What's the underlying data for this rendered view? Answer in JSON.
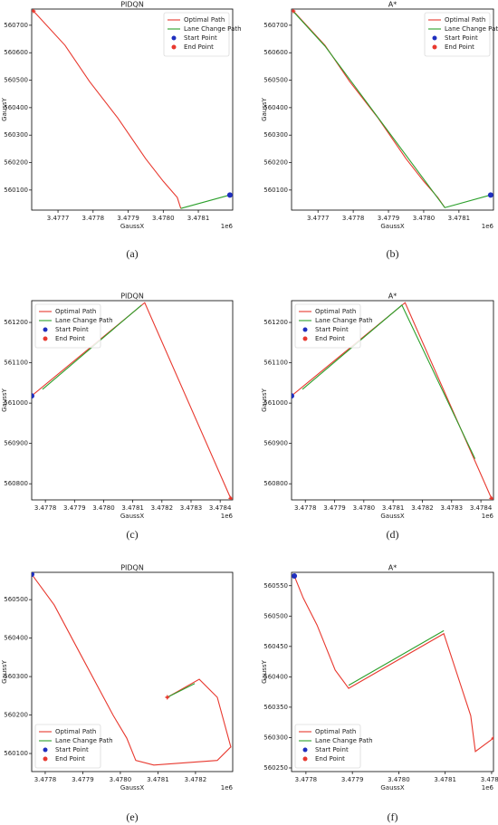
{
  "chart_data": [
    {
      "type": "line",
      "title": "PIDQN",
      "xlabel": "GaussX",
      "ylabel": "GaussY",
      "x_offset_label": "1e6",
      "caption": "(a)",
      "legend": "upper right",
      "xlim": [
        3.477625,
        3.478198
      ],
      "ylim": [
        560027,
        560759
      ],
      "xticks": [
        3.4777,
        3.4778,
        3.4779,
        {
          "value": 3.478,
          "label": "3.4780"
        },
        3.4781
      ],
      "yticks": [
        560100,
        560200,
        560300,
        560400,
        560500,
        560600,
        560700
      ],
      "series": [
        {
          "name": "Optimal Path",
          "kind": "line",
          "color": "#e8392f",
          "x": [
            3.47763,
            3.47772,
            3.47779,
            3.47787,
            3.47795,
            3.478,
            3.47804,
            3.47805
          ],
          "values": [
            560752,
            560627,
            560495,
            560363,
            560214,
            560132,
            560073,
            560033
          ]
        },
        {
          "name": "Lane Change Path",
          "kind": "line",
          "color": "#2ca02c",
          "x": [
            3.47805,
            3.47819
          ],
          "values": [
            560033,
            560082
          ]
        },
        {
          "name": "Start Point",
          "kind": "scatter",
          "color": "#1f2fbf",
          "x": [
            3.47819
          ],
          "values": [
            560082
          ]
        },
        {
          "name": "End Point",
          "kind": "scatter",
          "color": "#e8392f",
          "x": [
            3.47763
          ],
          "values": [
            560752
          ]
        }
      ]
    },
    {
      "type": "line",
      "title": "A*",
      "xlabel": "GaussX",
      "ylabel": "GaussY",
      "x_offset_label": "1e6",
      "caption": "(b)",
      "legend": "upper right",
      "xlim": [
        3.477625,
        3.478198
      ],
      "ylim": [
        560027,
        560759
      ],
      "xticks": [
        3.4777,
        3.4778,
        3.4779,
        {
          "value": 3.478,
          "label": "3.4780"
        },
        3.4781
      ],
      "yticks": [
        560100,
        560200,
        560300,
        560400,
        560500,
        560600,
        560700
      ],
      "series": [
        {
          "name": "Optimal Path",
          "kind": "line",
          "color": "#e8392f",
          "x": [
            3.47763,
            3.47772,
            3.47779,
            3.47787,
            3.47795,
            3.478,
            3.47804,
            3.47806
          ],
          "values": [
            560752,
            560627,
            560495,
            560363,
            560214,
            560132,
            560073,
            560036
          ]
        },
        {
          "name": "Lane Change Path",
          "kind": "line",
          "color": "#2ca02c",
          "x": [
            3.47763,
            3.47772,
            3.47806,
            3.47819
          ],
          "values": [
            560750,
            560624,
            560036,
            560082
          ]
        },
        {
          "name": "Start Point",
          "kind": "scatter",
          "color": "#1f2fbf",
          "x": [
            3.47819
          ],
          "values": [
            560082
          ]
        },
        {
          "name": "End Point",
          "kind": "scatter",
          "color": "#e8392f",
          "x": [
            3.47763
          ],
          "values": [
            560752
          ]
        }
      ]
    },
    {
      "type": "line",
      "title": "PIDQN",
      "xlabel": "GaussX",
      "ylabel": "GaussY",
      "x_offset_label": "1e6",
      "caption": "(c)",
      "legend": "upper left",
      "xlim": [
        3.477753,
        3.478443
      ],
      "ylim": [
        560760,
        561254
      ],
      "xticks": [
        3.4778,
        3.4779,
        {
          "value": 3.478,
          "label": "3.4780"
        },
        3.4781,
        3.4782,
        3.4783,
        3.4784
      ],
      "yticks": [
        560800,
        560900,
        561000,
        561100,
        561200
      ],
      "series": [
        {
          "name": "Optimal Path",
          "kind": "line",
          "color": "#e8392f",
          "x": [
            3.477753,
            3.478141,
            3.478436
          ],
          "values": [
            561018,
            561249,
            560764
          ]
        },
        {
          "name": "Lane Change Path",
          "kind": "line",
          "color": "#2ca02c",
          "x": [
            3.47779,
            3.47813
          ],
          "values": [
            561034,
            561243
          ]
        },
        {
          "name": "Start Point",
          "kind": "scatter",
          "color": "#1f2fbf",
          "x": [
            3.477753
          ],
          "values": [
            561018
          ]
        },
        {
          "name": "End Point",
          "kind": "scatter",
          "color": "#e8392f",
          "x": [
            3.478436
          ],
          "values": [
            560764
          ]
        }
      ]
    },
    {
      "type": "line",
      "title": "A*",
      "xlabel": "GaussX",
      "ylabel": "GaussY",
      "x_offset_label": "1e6",
      "caption": "(d)",
      "legend": "upper left",
      "xlim": [
        3.477753,
        3.478443
      ],
      "ylim": [
        560760,
        561254
      ],
      "xticks": [
        3.4778,
        3.4779,
        {
          "value": 3.478,
          "label": "3.4780"
        },
        3.4781,
        3.4782,
        3.4783,
        3.4784
      ],
      "yticks": [
        560800,
        560900,
        561000,
        561100,
        561200
      ],
      "series": [
        {
          "name": "Optimal Path",
          "kind": "line",
          "color": "#e8392f",
          "x": [
            3.477753,
            3.478141,
            3.478436
          ],
          "values": [
            561018,
            561249,
            560764
          ]
        },
        {
          "name": "Lane Change Path",
          "kind": "line",
          "color": "#2ca02c",
          "x": [
            3.47779,
            3.47813,
            3.47838
          ],
          "values": [
            561034,
            561243,
            560862
          ]
        },
        {
          "name": "Start Point",
          "kind": "scatter",
          "color": "#1f2fbf",
          "x": [
            3.477753
          ],
          "values": [
            561018
          ]
        },
        {
          "name": "End Point",
          "kind": "scatter",
          "color": "#e8392f",
          "x": [
            3.478436
          ],
          "values": [
            560764
          ]
        }
      ]
    },
    {
      "type": "line",
      "title": "PIDQN",
      "xlabel": "GaussX",
      "ylabel": "GaussY",
      "x_offset_label": "1e6",
      "caption": "(e)",
      "legend": "lower left",
      "xlim": [
        3.477764,
        3.478299
      ],
      "ylim": [
        560053,
        560571
      ],
      "xticks": [
        3.4778,
        3.4779,
        {
          "value": 3.478,
          "label": "3.4780"
        },
        3.4781,
        3.4782
      ],
      "yticks": [
        560100,
        560200,
        560300,
        560400,
        560500
      ],
      "series": [
        {
          "name": "Optimal Path",
          "kind": "line",
          "color": "#e8392f",
          "x": [
            3.477764,
            3.477824,
            3.477884,
            3.477981,
            3.478017,
            3.478041,
            3.478089,
            3.478258,
            3.478294,
            3.478258,
            3.47821,
            3.478125
          ],
          "values": [
            560566,
            560486,
            560376,
            560199,
            560140,
            560082,
            560070,
            560082,
            560117,
            560246,
            560293,
            560246
          ]
        },
        {
          "name": "Lane Change Path",
          "kind": "line",
          "color": "#2ca02c",
          "x": [
            3.478125,
            3.478198
          ],
          "values": [
            560246,
            560282
          ]
        },
        {
          "name": "Start Point",
          "kind": "scatter",
          "color": "#1f2fbf",
          "x": [
            3.477764
          ],
          "values": [
            560566
          ]
        },
        {
          "name": "End Point",
          "kind": "scatter",
          "color": "#e8392f",
          "x": [
            3.478125
          ],
          "values": [
            560246
          ]
        }
      ]
    },
    {
      "type": "line",
      "title": "A*",
      "xlabel": "GaussX",
      "ylabel": "GaussY",
      "x_offset_label": "1e6",
      "caption": "(f)",
      "legend": "lower left",
      "xlim": [
        3.477769,
        3.478204
      ],
      "ylim": [
        560244,
        560572
      ],
      "xticks": [
        3.4778,
        3.4779,
        {
          "value": 3.478,
          "label": "3.4780"
        },
        3.4781,
        3.4782
      ],
      "yticks": [
        560250,
        560300,
        560350,
        560400,
        560450,
        560500,
        560550
      ],
      "series": [
        {
          "name": "Optimal Path",
          "kind": "line",
          "color": "#e8392f",
          "x": [
            3.477775,
            3.477794,
            3.477824,
            3.477863,
            3.477892,
            3.478097,
            3.478155,
            3.478165,
            3.478204
          ],
          "values": [
            560566,
            560530,
            560485,
            560411,
            560381,
            560471,
            560336,
            560277,
            560299
          ]
        },
        {
          "name": "Lane Change Path",
          "kind": "line",
          "color": "#2ca02c",
          "x": [
            3.477892,
            3.478097
          ],
          "values": [
            560386,
            560476
          ]
        },
        {
          "name": "Start Point",
          "kind": "scatter",
          "color": "#1f2fbf",
          "x": [
            3.477775
          ],
          "values": [
            560566
          ]
        },
        {
          "name": "End Point",
          "kind": "scatter",
          "color": "#e8392f",
          "x": [
            3.478204
          ],
          "values": [
            560299
          ]
        }
      ]
    }
  ]
}
